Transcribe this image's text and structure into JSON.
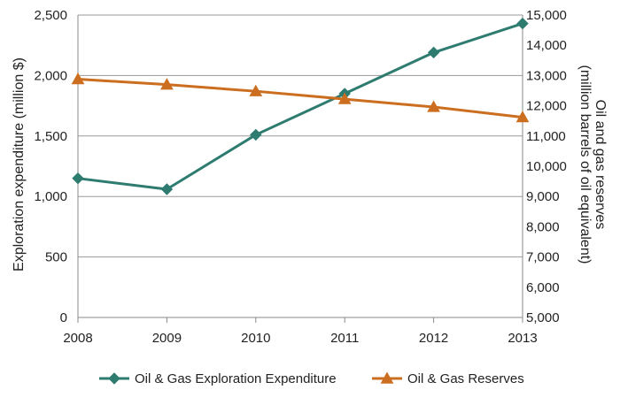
{
  "chart_data": {
    "type": "line",
    "title": "",
    "categories": [
      "2008",
      "2009",
      "2010",
      "2011",
      "2012",
      "2013"
    ],
    "xlabel": "",
    "ylabel_left": "Exploration expenditure (million $)",
    "ylabel_right_line1": "Oil and gas reserves",
    "ylabel_right_line2": "(million barrels of oil equivalent)",
    "y_left": {
      "min": 0,
      "max": 2500,
      "ticks": [
        0,
        500,
        1000,
        1500,
        2000,
        2500
      ],
      "tick_labels": [
        "0",
        "500",
        "1,000",
        "1,500",
        "2,000",
        "2,500"
      ]
    },
    "y_right": {
      "min": 5000,
      "max": 15000,
      "ticks": [
        5000,
        6000,
        7000,
        8000,
        9000,
        10000,
        11000,
        12000,
        13000,
        14000,
        15000
      ],
      "tick_labels": [
        "5,000",
        "6,000",
        "7,000",
        "8,000",
        "9,000",
        "10,000",
        "11,000",
        "12,000",
        "13,000",
        "14,000",
        "15,000"
      ]
    },
    "grid": true,
    "legend_position": "bottom",
    "series": [
      {
        "name": "Oil & Gas Exploration Expenditure",
        "axis": "left",
        "marker": "diamond",
        "color": "#2e7b70",
        "values": [
          1150,
          1060,
          1510,
          1850,
          2190,
          2430
        ]
      },
      {
        "name": "Oil & Gas Reserves",
        "axis": "right",
        "marker": "triangle",
        "color": "#cc6e1f",
        "values": [
          12880,
          12700,
          12480,
          12220,
          11960,
          11620
        ]
      }
    ]
  }
}
